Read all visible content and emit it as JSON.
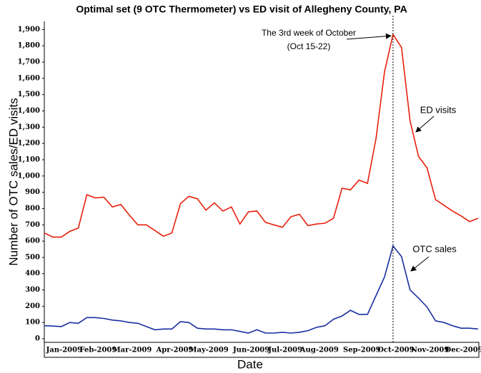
{
  "chart_data": {
    "type": "line",
    "title": "Optimal set (9 OTC Thermometer) vs ED visit of Allegheny County, PA",
    "x_label": "Date",
    "y_label": "Number of OTC sales/ED visits",
    "categories": [
      null,
      null,
      "Jan-2009",
      null,
      null,
      null,
      "Feb-2009",
      null,
      null,
      null,
      "Mar-2009",
      null,
      null,
      null,
      null,
      "Apr-2009",
      null,
      null,
      null,
      "May-2009",
      null,
      null,
      null,
      null,
      "Jun-2009",
      null,
      null,
      null,
      "Jul-2009",
      null,
      null,
      null,
      "Aug-2009",
      null,
      null,
      null,
      null,
      "Sep-2009",
      null,
      null,
      null,
      "Oct-2009",
      null,
      null,
      null,
      "Nov-2009",
      null,
      null,
      null,
      "Dec-2009",
      null,
      null
    ],
    "series": [
      {
        "name": "ED visits",
        "color": "#e8200c",
        "values": [
          650,
          625,
          625,
          660,
          680,
          885,
          865,
          870,
          810,
          825,
          760,
          700,
          700,
          665,
          630,
          650,
          830,
          875,
          860,
          790,
          835,
          785,
          810,
          705,
          780,
          785,
          715,
          700,
          685,
          750,
          765,
          695,
          705,
          710,
          740,
          925,
          915,
          975,
          955,
          1230,
          1640,
          1870,
          1790,
          1340,
          1120,
          1050,
          855,
          820,
          785,
          755,
          720,
          740
        ]
      },
      {
        "name": "OTC sales",
        "color": "#1a2fa0",
        "values": [
          80,
          78,
          75,
          100,
          95,
          130,
          130,
          125,
          115,
          110,
          100,
          95,
          75,
          55,
          60,
          60,
          105,
          100,
          65,
          60,
          60,
          55,
          55,
          45,
          35,
          55,
          35,
          35,
          40,
          35,
          40,
          50,
          70,
          80,
          120,
          140,
          175,
          150,
          150,
          265,
          380,
          570,
          505,
          300,
          250,
          195,
          110,
          100,
          80,
          65,
          65,
          60
        ]
      }
    ],
    "ylim": [
      0,
      1950
    ],
    "yticks": [
      0,
      100,
      200,
      300,
      400,
      500,
      600,
      700,
      800,
      900,
      {
        "value": 1000,
        "label": "1,000"
      },
      {
        "value": 1100,
        "label": "1,100"
      },
      {
        "value": 1200,
        "label": "1,200"
      },
      {
        "value": 1300,
        "label": "1,300"
      },
      {
        "value": 1400,
        "label": "1,400"
      },
      {
        "value": 1500,
        "label": "1,500"
      },
      {
        "value": 1600,
        "label": "1,600"
      },
      {
        "value": 1700,
        "label": "1,700"
      },
      {
        "value": 1800,
        "label": "1,800"
      },
      {
        "value": 1900,
        "label": "1,900"
      }
    ],
    "annotations": [
      "The 3rd week of October",
      "(Oct 15-22)",
      "ED visits",
      "OTC sales"
    ]
  }
}
